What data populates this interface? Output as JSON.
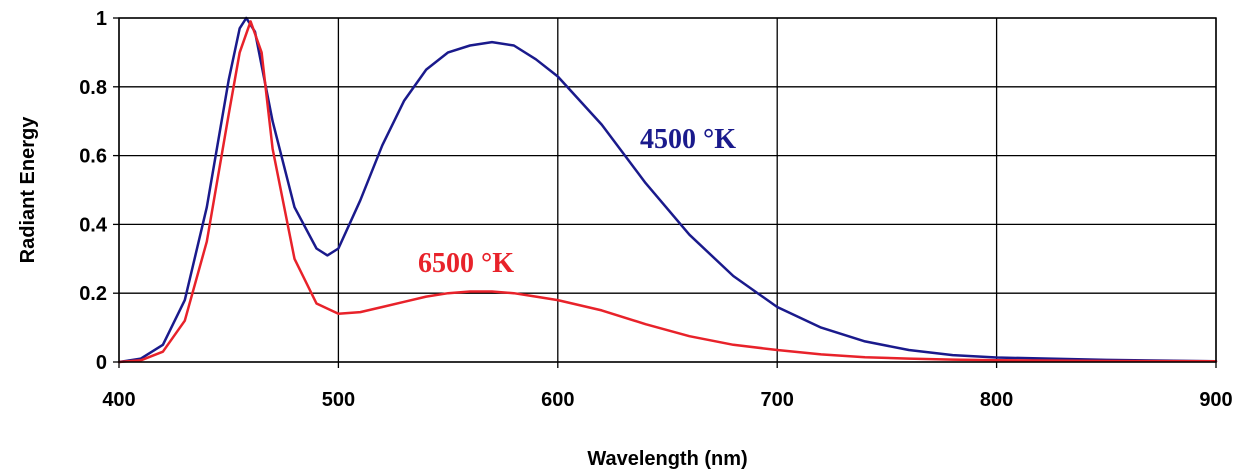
{
  "chart_data": {
    "type": "line",
    "xlabel": "Wavelength (nm)",
    "ylabel": "Radiant Energy",
    "xlim": [
      400,
      900
    ],
    "ylim": [
      0,
      1
    ],
    "x_ticks": [
      "400",
      "500",
      "600",
      "700",
      "800",
      "900"
    ],
    "y_ticks": [
      "0",
      "0.2",
      "0.4",
      "0.6",
      "0.8",
      "1"
    ],
    "grid": true,
    "colors": {
      "series_4500": "#1a1a8c",
      "series_6500": "#e8222a"
    },
    "series": [
      {
        "name": "4500 °K",
        "color": "#1a1a8c",
        "x": [
          400,
          410,
          420,
          430,
          440,
          450,
          455,
          458,
          462,
          470,
          480,
          490,
          495,
          500,
          510,
          520,
          530,
          540,
          550,
          560,
          570,
          580,
          590,
          600,
          620,
          640,
          660,
          680,
          700,
          720,
          740,
          760,
          780,
          800,
          850,
          900
        ],
        "y": [
          0,
          0.01,
          0.05,
          0.18,
          0.45,
          0.82,
          0.97,
          1.0,
          0.96,
          0.7,
          0.45,
          0.33,
          0.31,
          0.33,
          0.47,
          0.63,
          0.76,
          0.85,
          0.9,
          0.92,
          0.93,
          0.92,
          0.88,
          0.83,
          0.69,
          0.52,
          0.37,
          0.25,
          0.16,
          0.1,
          0.06,
          0.035,
          0.02,
          0.013,
          0.006,
          0.002
        ]
      },
      {
        "name": "6500 °K",
        "color": "#e8222a",
        "x": [
          400,
          410,
          420,
          430,
          440,
          450,
          455,
          460,
          465,
          470,
          480,
          490,
          500,
          510,
          520,
          530,
          540,
          550,
          560,
          570,
          580,
          590,
          600,
          620,
          640,
          660,
          680,
          700,
          720,
          740,
          760,
          780,
          800,
          850,
          900
        ],
        "y": [
          0,
          0.005,
          0.03,
          0.12,
          0.35,
          0.72,
          0.9,
          0.99,
          0.9,
          0.62,
          0.3,
          0.17,
          0.14,
          0.145,
          0.16,
          0.175,
          0.19,
          0.2,
          0.205,
          0.205,
          0.2,
          0.19,
          0.18,
          0.15,
          0.11,
          0.075,
          0.05,
          0.035,
          0.022,
          0.014,
          0.01,
          0.007,
          0.005,
          0.003,
          0.002
        ]
      }
    ]
  }
}
